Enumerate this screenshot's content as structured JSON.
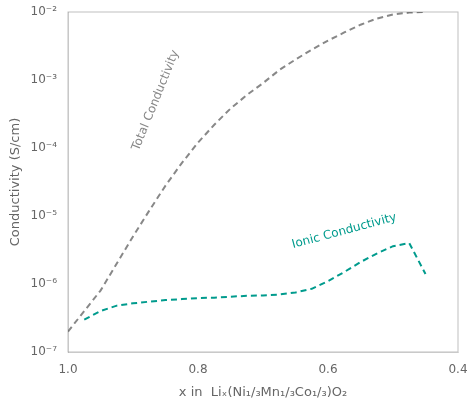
{
  "chart_data": {
    "type": "line",
    "log": "y",
    "xlabel": "x in  Liₓ(Ni₁/₃Mn₁/₃Co₁/₃)O₂",
    "ylabel": "Conductivity (S/cm)",
    "xlim": [
      1.0,
      0.4
    ],
    "ylim": [
      1e-07,
      0.01
    ],
    "xticks": [
      {
        "value": 1.0,
        "label": "1.0"
      },
      0.8,
      0.6,
      0.4
    ],
    "yticks": [
      {
        "value": 1e-07,
        "label": "10⁻⁷"
      },
      {
        "value": 1e-06,
        "label": "10⁻⁶"
      },
      {
        "value": 1e-05,
        "label": "10⁻⁵"
      },
      {
        "value": 0.0001,
        "label": "10⁻⁴"
      },
      {
        "value": 0.001,
        "label": "10⁻³"
      },
      {
        "value": 0.01,
        "label": "10⁻²"
      }
    ],
    "grid": false,
    "series": [
      {
        "color": "#888888",
        "line_style": "dashed",
        "x": [
          1.0,
          0.975,
          0.95,
          0.925,
          0.9,
          0.875,
          0.85,
          0.825,
          0.8,
          0.775,
          0.75,
          0.725,
          0.7,
          0.675,
          0.65,
          0.625,
          0.6,
          0.575,
          0.55,
          0.525,
          0.5,
          0.475,
          0.45
        ],
        "values": [
          2e-07,
          4e-07,
          8e-07,
          2e-06,
          5e-06,
          1.2e-05,
          2.8e-05,
          6e-05,
          0.00012,
          0.00022,
          0.00038,
          0.0006,
          0.0009,
          0.0014,
          0.002,
          0.0028,
          0.0038,
          0.005,
          0.0065,
          0.008,
          0.0092,
          0.0098,
          0.01
        ]
      },
      {
        "color": "#009B8D",
        "line_style": "dashed",
        "x": [
          0.975,
          0.95,
          0.925,
          0.9,
          0.875,
          0.85,
          0.825,
          0.8,
          0.775,
          0.75,
          0.725,
          0.7,
          0.675,
          0.65,
          0.625,
          0.6,
          0.575,
          0.55,
          0.525,
          0.5,
          0.475,
          0.45
        ],
        "values": [
          3e-07,
          4e-07,
          4.8e-07,
          5.2e-07,
          5.5e-07,
          5.8e-07,
          6e-07,
          6.2e-07,
          6.3e-07,
          6.5e-07,
          6.7e-07,
          6.8e-07,
          7e-07,
          7.5e-07,
          8.5e-07,
          1.1e-06,
          1.5e-06,
          2.1e-06,
          2.8e-06,
          3.6e-06,
          4e-06,
          1.4e-06
        ]
      }
    ],
    "annotations": [
      {
        "text": "Total Conductivity",
        "x": 0.865,
        "y": 0.0005,
        "color": "#888888"
      },
      {
        "text": "Ionic Conductivity",
        "x": 0.575,
        "y": 6e-06,
        "color": "#009B8D"
      }
    ]
  }
}
